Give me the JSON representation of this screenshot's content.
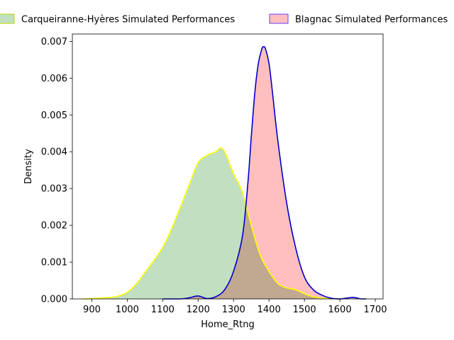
{
  "chart_data": {
    "type": "area",
    "xlabel": "Home_Rtng",
    "ylabel": "Density",
    "xlim": [
      845,
      1722
    ],
    "ylim": [
      0,
      0.0072
    ],
    "xticks": [
      900,
      1000,
      1100,
      1200,
      1300,
      1400,
      1500,
      1600,
      1700
    ],
    "yticks": [
      0.0,
      0.001,
      0.002,
      0.003,
      0.004,
      0.005,
      0.006,
      0.007
    ],
    "ytick_labels": [
      "0.000",
      "0.001",
      "0.002",
      "0.003",
      "0.004",
      "0.005",
      "0.006",
      "0.007"
    ],
    "grid": false,
    "legend_placement": "top",
    "series": [
      {
        "name": "Carqueiranne-Hyères Simulated Performances",
        "fill": "#c1e0c1",
        "stroke": "#ffff00",
        "legend_edge": "#b5d600",
        "x": [
          875,
          900,
          950,
          975,
          1000,
          1025,
          1050,
          1075,
          1100,
          1125,
          1150,
          1175,
          1200,
          1225,
          1250,
          1262,
          1275,
          1300,
          1325,
          1350,
          1375,
          1400,
          1425,
          1450,
          1475,
          1500,
          1525,
          1550,
          1600
        ],
        "y": [
          0.0,
          1e-05,
          4e-05,
          8e-05,
          0.00018,
          0.0004,
          0.00072,
          0.00104,
          0.0014,
          0.0019,
          0.0025,
          0.0031,
          0.0037,
          0.0039,
          0.004,
          0.0041,
          0.004,
          0.0034,
          0.0029,
          0.002,
          0.0012,
          0.00075,
          0.00042,
          0.0003,
          0.00025,
          0.00014,
          6e-05,
          2e-05,
          0.0
        ]
      },
      {
        "name": "Blagnac Simulated Performances",
        "fill": "#ffbfbf",
        "stroke": "#0000cc",
        "legend_edge": "#6a3fff",
        "x": [
          1100,
          1150,
          1175,
          1200,
          1225,
          1250,
          1275,
          1300,
          1325,
          1340,
          1350,
          1360,
          1370,
          1380,
          1385,
          1390,
          1400,
          1410,
          1425,
          1450,
          1475,
          1500,
          1525,
          1550,
          1575,
          1600,
          1625,
          1640,
          1660,
          1675
        ],
        "y": [
          0.0,
          0.0,
          3e-05,
          8e-05,
          1e-05,
          6e-05,
          0.00025,
          0.00075,
          0.0017,
          0.0031,
          0.0044,
          0.0056,
          0.0064,
          0.0068,
          0.00685,
          0.0068,
          0.0064,
          0.0056,
          0.0043,
          0.0026,
          0.0014,
          0.0006,
          0.00025,
          0.0001,
          2e-05,
          0.0,
          3e-05,
          4e-05,
          0.0,
          0.0
        ]
      }
    ]
  }
}
